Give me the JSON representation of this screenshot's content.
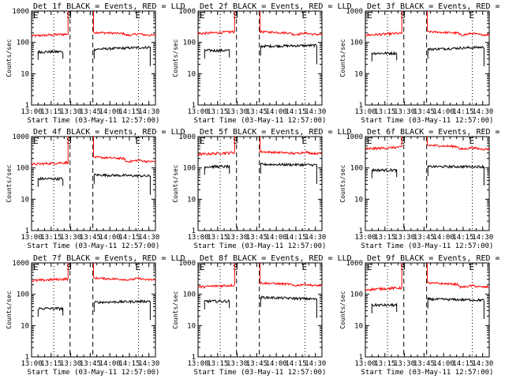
{
  "chart_data": [
    {
      "type": "line",
      "title": "Det 1f BLACK = Events, RED = LLD",
      "xlabel": "Start Time (03-May-11 12:57:00)",
      "ylabel": "Counts/sec",
      "yscale": "log",
      "ylim": [
        1,
        1000
      ],
      "x_ticks": [
        "13:00",
        "13:15",
        "13:30",
        "13:45",
        "14:00",
        "14:15",
        "14:30"
      ],
      "y_ticks": [
        "1",
        "10",
        "100",
        "1000"
      ],
      "markers": [
        "E",
        "S",
        "E"
      ],
      "red_levels": [
        160,
        210,
        170
      ],
      "black_levels": [
        50,
        60,
        70
      ],
      "series": [
        {
          "color": "#ff0000"
        },
        {
          "color": "#000000"
        }
      ]
    },
    {
      "type": "line",
      "title": "Det 2f BLACK = Events, RED = LLD",
      "xlabel": "Start Time (03-May-11 12:57:00)",
      "ylabel": "Counts/sec",
      "yscale": "log",
      "ylim": [
        1,
        1000
      ],
      "x_ticks": [
        "13:00",
        "13:15",
        "13:30",
        "13:45",
        "14:00",
        "14:15",
        "14:30"
      ],
      "y_ticks": [
        "1",
        "10",
        "100",
        "1000"
      ],
      "markers": [
        "E",
        "S",
        "E"
      ],
      "red_levels": [
        190,
        220,
        180
      ],
      "black_levels": [
        55,
        75,
        80
      ],
      "series": [
        {
          "color": "#ff0000"
        },
        {
          "color": "#000000"
        }
      ]
    },
    {
      "type": "line",
      "title": "Det 3f BLACK = Events, RED = LLD",
      "xlabel": "Start Time (03-May-11 12:57:00)",
      "ylabel": "Counts/sec",
      "yscale": "log",
      "ylim": [
        1,
        1000
      ],
      "x_ticks": [
        "13:00",
        "13:15",
        "13:30",
        "13:45",
        "14:00",
        "14:15",
        "14:30"
      ],
      "y_ticks": [
        "1",
        "10",
        "100",
        "1000"
      ],
      "markers": [
        "E",
        "S",
        "E"
      ],
      "red_levels": [
        170,
        220,
        175
      ],
      "black_levels": [
        45,
        60,
        70
      ],
      "series": [
        {
          "color": "#ff0000"
        },
        {
          "color": "#000000"
        }
      ]
    },
    {
      "type": "line",
      "title": "Det 4f BLACK = Events, RED = LLD",
      "xlabel": "Start Time (03-May-11 12:57:00)",
      "ylabel": "Counts/sec",
      "yscale": "log",
      "ylim": [
        1,
        1000
      ],
      "x_ticks": [
        "13:00",
        "13:15",
        "13:30",
        "13:45",
        "14:00",
        "14:15",
        "14:30"
      ],
      "y_ticks": [
        "1",
        "10",
        "100",
        "1000"
      ],
      "markers": [
        "E",
        "S",
        "E"
      ],
      "red_levels": [
        130,
        220,
        160
      ],
      "black_levels": [
        45,
        60,
        55
      ],
      "series": [
        {
          "color": "#ff0000"
        },
        {
          "color": "#000000"
        }
      ]
    },
    {
      "type": "line",
      "title": "Det 5f BLACK = Events, RED = LLD",
      "xlabel": "Start Time (03-May-11 12:57:00)",
      "ylabel": "Counts/sec",
      "yscale": "log",
      "ylim": [
        1,
        1000
      ],
      "x_ticks": [
        "13:00",
        "13:15",
        "13:30",
        "13:45",
        "14:00",
        "14:15",
        "14:30"
      ],
      "y_ticks": [
        "1",
        "10",
        "100",
        "1000"
      ],
      "markers": [
        "E",
        "S",
        "E"
      ],
      "red_levels": [
        270,
        330,
        290
      ],
      "black_levels": [
        110,
        130,
        125
      ],
      "series": [
        {
          "color": "#ff0000"
        },
        {
          "color": "#000000"
        }
      ]
    },
    {
      "type": "line",
      "title": "Det 6f BLACK = Events, RED = LLD",
      "xlabel": "Start Time (03-May-11 12:57:00)",
      "ylabel": "Counts/sec",
      "yscale": "log",
      "ylim": [
        1,
        1000
      ],
      "x_ticks": [
        "13:00",
        "13:15",
        "13:30",
        "13:45",
        "14:00",
        "14:15",
        "14:30"
      ],
      "y_ticks": [
        "1",
        "10",
        "100",
        "1000"
      ],
      "markers": [
        "E",
        "S",
        "E"
      ],
      "red_levels": [
        400,
        530,
        400
      ],
      "black_levels": [
        85,
        110,
        110
      ],
      "series": [
        {
          "color": "#ff0000"
        },
        {
          "color": "#000000"
        }
      ]
    },
    {
      "type": "line",
      "title": "Det 7f BLACK = Events, RED = LLD",
      "xlabel": "Start Time (03-May-11 12:57:00)",
      "ylabel": "Counts/sec",
      "yscale": "log",
      "ylim": [
        1,
        1000
      ],
      "x_ticks": [
        "13:00",
        "13:15",
        "13:30",
        "13:45",
        "14:00",
        "14:15",
        "14:30"
      ],
      "y_ticks": [
        "1",
        "10",
        "100",
        "1000"
      ],
      "markers": [
        "E",
        "S",
        "E"
      ],
      "red_levels": [
        270,
        330,
        290
      ],
      "black_levels": [
        35,
        55,
        60
      ],
      "series": [
        {
          "color": "#ff0000"
        },
        {
          "color": "#000000"
        }
      ]
    },
    {
      "type": "line",
      "title": "Det 8f BLACK = Events, RED = LLD",
      "xlabel": "Start Time (03-May-11 12:57:00)",
      "ylabel": "Counts/sec",
      "yscale": "log",
      "ylim": [
        1,
        1000
      ],
      "x_ticks": [
        "13:00",
        "13:15",
        "13:30",
        "13:45",
        "14:00",
        "14:15",
        "14:30"
      ],
      "y_ticks": [
        "1",
        "10",
        "100",
        "1000"
      ],
      "markers": [
        "E",
        "S",
        "E"
      ],
      "red_levels": [
        170,
        230,
        190
      ],
      "black_levels": [
        60,
        80,
        70
      ],
      "series": [
        {
          "color": "#ff0000"
        },
        {
          "color": "#000000"
        }
      ]
    },
    {
      "type": "line",
      "title": "Det 9f BLACK = Events, RED = LLD",
      "xlabel": "Start Time (03-May-11 12:57:00)",
      "ylabel": "Counts/sec",
      "yscale": "log",
      "ylim": [
        1,
        1000
      ],
      "x_ticks": [
        "13:00",
        "13:15",
        "13:30",
        "13:45",
        "14:00",
        "14:15",
        "14:30"
      ],
      "y_ticks": [
        "1",
        "10",
        "100",
        "1000"
      ],
      "markers": [
        "E",
        "S",
        "E"
      ],
      "red_levels": [
        140,
        230,
        170
      ],
      "black_levels": [
        45,
        70,
        65
      ],
      "series": [
        {
          "color": "#ff0000"
        },
        {
          "color": "#000000"
        }
      ]
    }
  ]
}
